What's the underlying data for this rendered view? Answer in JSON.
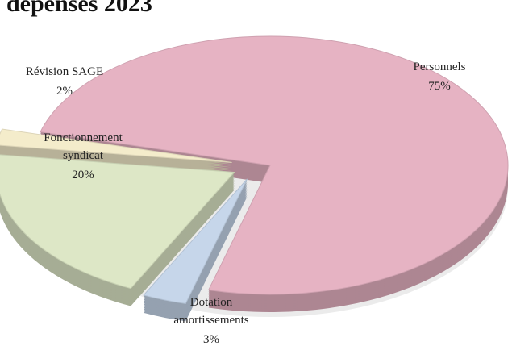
{
  "chart_data": {
    "type": "pie",
    "title": "dépenses 2023",
    "categories": [
      "Personnels",
      "Dotation amortissements",
      "Fonctionnement syndicat",
      "Révision SAGE"
    ],
    "values": [
      75,
      3,
      20,
      2
    ],
    "value_labels": [
      "75%",
      "3%",
      "20%",
      "2%"
    ],
    "colors": [
      "#e6b3c3",
      "#c6d6ea",
      "#dde7c6",
      "#f4eccb"
    ]
  }
}
